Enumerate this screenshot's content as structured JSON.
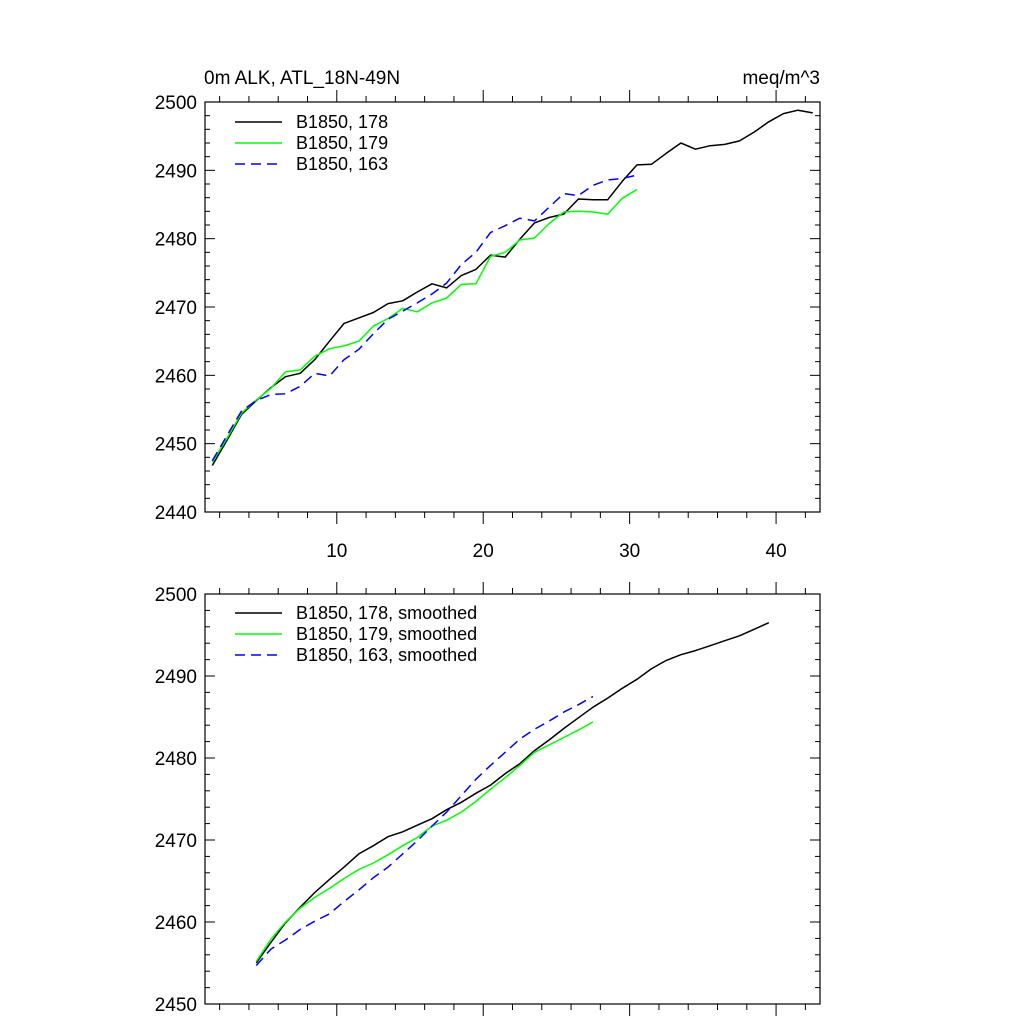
{
  "chart_data": [
    {
      "type": "line",
      "title_left": "0m ALK, ATL_18N-49N",
      "title_right": "meq/m^3",
      "xlabel": "",
      "ylabel": "",
      "xlim": [
        1,
        43
      ],
      "ylim": [
        2440,
        2500
      ],
      "x_ticks": [
        10,
        20,
        30,
        40
      ],
      "y_ticks": [
        2440,
        2450,
        2460,
        2470,
        2480,
        2490,
        2500
      ],
      "x_tick_labels": [
        "10",
        "20",
        "30",
        "40"
      ],
      "y_tick_labels": [
        "2440",
        "2450",
        "2460",
        "2470",
        "2480",
        "2490",
        "2500"
      ],
      "legend_position": "top-left",
      "series": [
        {
          "name": "B1850, 178",
          "color": "#000000",
          "dash": "solid",
          "x": [
            1.5,
            2.5,
            3.5,
            4.5,
            5.5,
            6.5,
            7.5,
            8.5,
            9.5,
            10.5,
            11.5,
            12.5,
            13.5,
            14.5,
            15.5,
            16.5,
            17.5,
            18.5,
            19.5,
            20.5,
            21.5,
            22.5,
            23.5,
            24.5,
            25.5,
            26.5,
            27.5,
            28.5,
            29.5,
            30.5,
            31.5,
            32.5,
            33.5,
            34.5,
            35.5,
            36.5,
            37.5,
            38.5,
            39.5,
            40.5,
            41.5,
            42.5
          ],
          "y": [
            2446.8,
            2450.5,
            2454.3,
            2456.3,
            2458.2,
            2459.8,
            2460.3,
            2462.3,
            2465.0,
            2467.6,
            2468.4,
            2469.2,
            2470.5,
            2470.9,
            2472.2,
            2473.4,
            2472.8,
            2474.6,
            2475.5,
            2477.6,
            2477.3,
            2479.9,
            2482.3,
            2483.1,
            2483.6,
            2485.8,
            2485.7,
            2485.7,
            2488.4,
            2490.8,
            2490.9,
            2492.5,
            2494.0,
            2493.1,
            2493.6,
            2493.8,
            2494.3,
            2495.6,
            2497.1,
            2498.3,
            2498.8,
            2498.4
          ]
        },
        {
          "name": "B1850, 179",
          "color": "#00ff00",
          "dash": "solid",
          "x": [
            1.5,
            2.5,
            3.5,
            4.5,
            5.5,
            6.5,
            7.5,
            8.5,
            9.5,
            10.5,
            11.5,
            12.5,
            13.5,
            14.5,
            15.5,
            16.5,
            17.5,
            18.5,
            19.5,
            20.5,
            21.5,
            22.5,
            23.5,
            24.5,
            25.5,
            26.5,
            27.5,
            28.5,
            29.5,
            30.5
          ],
          "y": [
            2447.3,
            2450.8,
            2454.5,
            2456.4,
            2458.1,
            2460.5,
            2460.8,
            2462.8,
            2463.9,
            2464.3,
            2465.0,
            2467.2,
            2468.3,
            2469.8,
            2469.3,
            2470.6,
            2471.3,
            2473.3,
            2473.4,
            2477.4,
            2478.0,
            2479.8,
            2480.1,
            2482.2,
            2483.9,
            2484.0,
            2483.9,
            2483.6,
            2485.9,
            2487.2
          ]
        },
        {
          "name": "B1850, 163",
          "color": "#0000ff",
          "dash": "dashed",
          "x": [
            1.5,
            2.5,
            3.5,
            4.5,
            5.5,
            6.5,
            7.5,
            8.5,
            9.5,
            10.5,
            11.5,
            12.5,
            13.5,
            14.5,
            15.5,
            16.5,
            17.5,
            18.5,
            19.5,
            20.5,
            21.5,
            22.5,
            23.5,
            24.5,
            25.5,
            26.5,
            27.5,
            28.5,
            29.5,
            30.5
          ],
          "y": [
            2447.5,
            2451.2,
            2454.8,
            2456.3,
            2457.2,
            2457.3,
            2458.4,
            2460.3,
            2459.9,
            2462.3,
            2463.8,
            2466.1,
            2468.2,
            2469.4,
            2470.6,
            2471.9,
            2473.5,
            2476.2,
            2478.0,
            2480.9,
            2481.9,
            2483.0,
            2482.6,
            2484.6,
            2486.6,
            2486.3,
            2487.8,
            2488.6,
            2488.8,
            2489.3
          ]
        }
      ]
    },
    {
      "type": "line",
      "xlabel": "",
      "ylabel": "",
      "xlim": [
        1,
        43
      ],
      "ylim": [
        2450,
        2500
      ],
      "x_ticks": [
        10,
        20,
        30,
        40
      ],
      "y_ticks": [
        2450,
        2460,
        2470,
        2480,
        2490,
        2500
      ],
      "y_tick_labels": [
        "2450",
        "2460",
        "2470",
        "2480",
        "2490",
        "2500"
      ],
      "legend_position": "top-left",
      "series": [
        {
          "name": "B1850, 178, smoothed",
          "color": "#000000",
          "dash": "solid",
          "x": [
            4.5,
            5.5,
            6.5,
            7.5,
            8.5,
            9.5,
            10.5,
            11.5,
            12.5,
            13.5,
            14.5,
            15.5,
            16.5,
            17.5,
            18.5,
            19.5,
            20.5,
            21.5,
            22.5,
            23.5,
            24.5,
            25.5,
            26.5,
            27.5,
            28.5,
            29.5,
            30.5,
            31.5,
            32.5,
            33.5,
            34.5,
            35.5,
            36.5,
            37.5,
            38.5,
            39.5
          ],
          "y": [
            2455.0,
            2457.5,
            2459.9,
            2461.8,
            2463.6,
            2465.2,
            2466.7,
            2468.3,
            2469.3,
            2470.4,
            2471.0,
            2471.8,
            2472.6,
            2473.7,
            2474.6,
            2475.7,
            2476.7,
            2478.1,
            2479.3,
            2480.9,
            2482.2,
            2483.6,
            2484.9,
            2486.2,
            2487.3,
            2488.5,
            2489.6,
            2490.9,
            2491.9,
            2492.6,
            2493.1,
            2493.7,
            2494.3,
            2494.9,
            2495.7,
            2496.5
          ]
        },
        {
          "name": "B1850, 179, smoothed",
          "color": "#00ff00",
          "dash": "solid",
          "x": [
            4.5,
            5.5,
            6.5,
            7.5,
            8.5,
            9.5,
            10.5,
            11.5,
            12.5,
            13.5,
            14.5,
            15.5,
            16.5,
            17.5,
            18.5,
            19.5,
            20.5,
            21.5,
            22.5,
            23.5,
            24.5,
            25.5,
            26.5,
            27.5
          ],
          "y": [
            2455.2,
            2457.9,
            2460.0,
            2461.7,
            2463.0,
            2464.1,
            2465.3,
            2466.4,
            2467.2,
            2468.2,
            2469.3,
            2470.3,
            2471.7,
            2472.4,
            2473.4,
            2474.7,
            2476.2,
            2477.6,
            2479.1,
            2480.7,
            2481.6,
            2482.5,
            2483.4,
            2484.4
          ]
        },
        {
          "name": "B1850, 163, smoothed",
          "color": "#0000ff",
          "dash": "dashed",
          "x": [
            4.5,
            5.5,
            6.5,
            7.5,
            8.5,
            9.5,
            10.5,
            11.5,
            12.5,
            13.5,
            14.5,
            15.5,
            16.5,
            17.5,
            18.5,
            19.5,
            20.5,
            21.5,
            22.5,
            23.5,
            24.5,
            25.5,
            26.5,
            27.5
          ],
          "y": [
            2454.7,
            2456.7,
            2457.8,
            2459.1,
            2460.1,
            2461.0,
            2462.5,
            2463.9,
            2465.4,
            2466.7,
            2468.3,
            2469.9,
            2471.7,
            2473.4,
            2475.4,
            2477.4,
            2479.1,
            2480.7,
            2482.3,
            2483.5,
            2484.5,
            2485.6,
            2486.5,
            2487.5
          ]
        }
      ]
    }
  ]
}
